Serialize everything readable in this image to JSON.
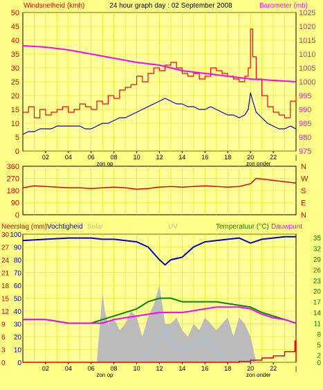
{
  "title": "24 hour graph day : 02 September 2008",
  "colors": {
    "background": "#ffff88",
    "plot_bg": "#ffff99",
    "grid": "#e6e000",
    "axis": "#000000",
    "wind_gust": "#ff0000",
    "wind_avg": "#0000cc",
    "barometer": "#ff00ff",
    "direction": "#dd0000",
    "humidity": "#0000cc",
    "temperature": "#008800",
    "dewpoint": "#ff00ff",
    "rain": "#dd0000",
    "solar": "#bbbbbb",
    "uv": "#88ccff",
    "left_label": "#dd0000",
    "right_label": "#ff00ff",
    "temp_label": "#008800",
    "axis_num_left": "#dd0000",
    "axis_num_right": "#ff00ff",
    "axis_num_temp": "#008800"
  },
  "x_ticks": [
    "02",
    "04",
    "06",
    "08",
    "10",
    "12",
    "14",
    "16",
    "18",
    "20",
    "22"
  ],
  "sun_labels": {
    "sunrise": "zon op",
    "sunset": "zon onder"
  },
  "chart_data": [
    {
      "type": "line",
      "name": "wind-barometer",
      "left_label": "Windsnelheid (kmh)",
      "right_label": "Barometer (mb)",
      "left_ticks": [
        0,
        5,
        10,
        15,
        20,
        25,
        30,
        35,
        40,
        45,
        50
      ],
      "right_ticks": [
        975,
        980,
        985,
        990,
        995,
        1000,
        1005,
        1010,
        1015,
        1020,
        1025
      ],
      "left_ylim": [
        0,
        50
      ],
      "right_ylim": [
        975,
        1025
      ],
      "x_range_hours": [
        0,
        24
      ],
      "series": [
        {
          "key": "gust",
          "axis": "left",
          "x": [
            0.0,
            0.5,
            1.0,
            1.5,
            2.0,
            2.5,
            3.0,
            3.5,
            4.0,
            4.5,
            5.0,
            5.5,
            6.0,
            6.5,
            7.0,
            7.5,
            8.0,
            8.5,
            9.0,
            9.5,
            10.0,
            10.5,
            11.0,
            11.5,
            12.0,
            12.5,
            13.0,
            13.5,
            14.0,
            14.5,
            15.0,
            15.5,
            16.0,
            16.5,
            17.0,
            17.5,
            18.0,
            18.5,
            19.0,
            19.5,
            19.8,
            20.0,
            20.2,
            20.5,
            21.0,
            21.5,
            22.0,
            22.5,
            23.0,
            23.5,
            24.0
          ],
          "values": [
            14,
            16,
            12,
            15,
            13,
            14,
            15,
            16,
            14,
            15,
            17,
            16,
            15,
            18,
            17,
            20,
            19,
            22,
            23,
            24,
            27,
            25,
            28,
            30,
            29,
            31,
            32,
            30,
            28,
            27,
            28,
            26,
            27,
            30,
            29,
            28,
            27,
            26,
            25,
            27,
            30,
            44,
            34,
            26,
            20,
            16,
            14,
            13,
            12,
            18,
            20
          ]
        },
        {
          "key": "average",
          "axis": "left",
          "x": [
            0.0,
            0.5,
            1.0,
            1.5,
            2.0,
            2.5,
            3.0,
            3.5,
            4.0,
            4.5,
            5.0,
            5.5,
            6.0,
            6.5,
            7.0,
            7.5,
            8.0,
            8.5,
            9.0,
            9.5,
            10.0,
            10.5,
            11.0,
            11.5,
            12.0,
            12.5,
            13.0,
            13.5,
            14.0,
            14.5,
            15.0,
            15.5,
            16.0,
            16.5,
            17.0,
            17.5,
            18.0,
            18.5,
            19.0,
            19.5,
            19.8,
            20.0,
            20.2,
            20.5,
            21.0,
            21.5,
            22.0,
            22.5,
            23.0,
            23.5,
            24.0
          ],
          "values": [
            6,
            7,
            7,
            8,
            8,
            8,
            9,
            9,
            9,
            9,
            9,
            8,
            8,
            9,
            10,
            10,
            11,
            12,
            12,
            13,
            14,
            15,
            16,
            17,
            18,
            19,
            18,
            17,
            17,
            16,
            16,
            15,
            15,
            16,
            15,
            14,
            13,
            13,
            12,
            13,
            15,
            21,
            18,
            14,
            12,
            10,
            9,
            8,
            8,
            9,
            8
          ]
        },
        {
          "key": "barometer",
          "axis": "right",
          "x": [
            0,
            2,
            4,
            6,
            8,
            10,
            12,
            14,
            16,
            18,
            20,
            22,
            24
          ],
          "values": [
            1013,
            1012.5,
            1011.5,
            1010,
            1008.5,
            1007,
            1006,
            1004,
            1003,
            1002,
            1001,
            1000.5,
            1000
          ]
        }
      ]
    },
    {
      "type": "line",
      "name": "wind-direction",
      "ticks": [
        360,
        270,
        180,
        90,
        0
      ],
      "ylim": [
        0,
        360
      ],
      "compass": [
        "N",
        "W",
        "S",
        "E",
        "N"
      ],
      "x_range_hours": [
        0,
        24
      ],
      "series": [
        {
          "key": "direction",
          "x": [
            0,
            1,
            2,
            3,
            4,
            5,
            6,
            7,
            8,
            9,
            10,
            11,
            12,
            13,
            14,
            15,
            16,
            17,
            18,
            19,
            20,
            20.5,
            21,
            22,
            23,
            24
          ],
          "values": [
            200,
            215,
            210,
            205,
            200,
            200,
            195,
            200,
            205,
            200,
            190,
            195,
            205,
            210,
            205,
            210,
            215,
            210,
            205,
            210,
            230,
            270,
            265,
            255,
            245,
            235
          ]
        }
      ]
    },
    {
      "type": "line",
      "name": "rain-humidity-temperature",
      "left_labels": [
        "Neerslag (mm)",
        "Vochtigheid",
        "Solar",
        "UV"
      ],
      "right_labels": [
        "Temperatuur (°C)",
        "Dauwpunt"
      ],
      "left_ticks_rain": [
        0,
        3,
        6,
        9,
        12,
        15,
        18,
        21,
        24,
        27,
        30
      ],
      "left_ticks_humidity": [
        0,
        10,
        20,
        30,
        40,
        50,
        60,
        70,
        80,
        90,
        100
      ],
      "right_ticks": [
        0,
        2,
        5,
        8,
        11,
        14,
        17,
        20,
        23,
        26,
        29,
        32,
        35
      ],
      "humidity_ylim": [
        0,
        100
      ],
      "rain_ylim": [
        0,
        30
      ],
      "temp_ylim": [
        0,
        36
      ],
      "x_range_hours": [
        0,
        24
      ],
      "series": [
        {
          "key": "humidity",
          "axis": "humidity",
          "x": [
            0,
            2,
            4,
            6,
            7,
            8,
            9,
            10,
            11,
            12,
            12.5,
            13,
            14,
            15,
            16,
            17,
            18,
            19,
            20,
            21,
            22,
            23,
            24
          ],
          "values": [
            95,
            96,
            97,
            97,
            96,
            96,
            95,
            94,
            90,
            80,
            76,
            80,
            82,
            90,
            94,
            95,
            96,
            97,
            93,
            96,
            97,
            98,
            98
          ]
        },
        {
          "key": "temperature",
          "axis": "temp",
          "x": [
            0,
            2,
            4,
            6,
            7,
            8,
            9,
            10,
            11,
            12,
            13,
            14,
            15,
            16,
            17,
            18,
            19,
            20,
            21,
            22,
            23,
            24
          ],
          "values": [
            12,
            12,
            11,
            11,
            12,
            13,
            14,
            15,
            17,
            18,
            18,
            17,
            17,
            17,
            17,
            16.5,
            16,
            15.5,
            14,
            13,
            12,
            11
          ]
        },
        {
          "key": "dewpoint",
          "axis": "temp",
          "x": [
            0,
            2,
            4,
            6,
            7,
            8,
            9,
            10,
            11,
            12,
            13,
            14,
            15,
            16,
            17,
            18,
            19,
            20,
            21,
            22,
            23,
            24
          ],
          "values": [
            12,
            12,
            11,
            11,
            11,
            12,
            12.5,
            13,
            13.5,
            14,
            14,
            14,
            14.5,
            15,
            15.5,
            15.5,
            15.5,
            15,
            13.5,
            12.5,
            12,
            11
          ]
        },
        {
          "key": "rain",
          "axis": "rain",
          "x": [
            0,
            18,
            19,
            20,
            21,
            22,
            23,
            23.9,
            24
          ],
          "values": [
            0,
            0,
            0.2,
            0.5,
            1,
            1.5,
            2.5,
            5,
            0
          ]
        },
        {
          "key": "solar",
          "axis": "humidity",
          "x": [
            6.5,
            7,
            7.2,
            7.5,
            8,
            8.5,
            9,
            9.5,
            10,
            10.5,
            11,
            11.5,
            12,
            12.5,
            13,
            13.5,
            14,
            14.5,
            15,
            15.5,
            16,
            16.5,
            17,
            17.5,
            18,
            18.5,
            19,
            19.5,
            20,
            20.5
          ],
          "values": [
            0,
            55,
            40,
            30,
            35,
            25,
            30,
            40,
            35,
            20,
            35,
            45,
            60,
            30,
            30,
            35,
            25,
            20,
            30,
            25,
            35,
            30,
            25,
            30,
            35,
            20,
            35,
            30,
            20,
            0
          ]
        },
        {
          "key": "uv",
          "axis": "humidity",
          "x": [
            10,
            11,
            12,
            12.5,
            13,
            14,
            15,
            16,
            17,
            18
          ],
          "values": [
            2,
            6,
            20,
            25,
            15,
            10,
            12,
            20,
            8,
            2
          ]
        }
      ]
    }
  ]
}
